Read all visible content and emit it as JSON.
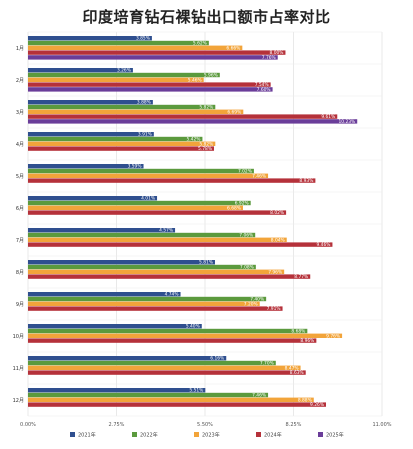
{
  "chart_data": {
    "type": "bar",
    "orientation": "horizontal",
    "title": "印度培育钻石裸钻出口额市占率对比",
    "categories": [
      "1月",
      "2月",
      "3月",
      "4月",
      "5月",
      "6月",
      "7月",
      "8月",
      "9月",
      "10月",
      "11月",
      "12月"
    ],
    "series": [
      {
        "name": "2021年",
        "color": "#2f4f8f",
        "values": [
          3.85,
          3.26,
          3.88,
          3.91,
          3.59,
          4.01,
          4.57,
          5.81,
          4.74,
          5.4,
          6.16,
          5.51
        ],
        "labels": [
          "3.85%",
          "3.26%",
          "3.88%",
          "3.91%",
          "3.59%",
          "4.01%",
          "4.57%",
          "5.81%",
          "4.74%",
          "5.40%",
          "6.16%",
          "5.51%"
        ]
      },
      {
        "name": "2022年",
        "color": "#5b9a3d",
        "values": [
          5.62,
          5.96,
          5.82,
          5.42,
          7.02,
          6.92,
          7.06,
          7.08,
          7.4,
          8.68,
          7.7,
          7.46
        ],
        "labels": [
          "5.62%",
          "5.96%",
          "5.82%",
          "5.42%",
          "7.02%",
          "6.92%",
          "7.06%",
          "7.08%",
          "7.40%",
          "8.68%",
          "7.70%",
          "7.46%"
        ]
      },
      {
        "name": "2023年",
        "color": "#f2a43a",
        "values": [
          6.66,
          5.46,
          6.69,
          5.82,
          7.46,
          6.68,
          8.04,
          7.96,
          7.2,
          9.76,
          8.47,
          8.88
        ],
        "labels": [
          "6.66%",
          "5.46%",
          "6.69%",
          "5.82%",
          "7.46%",
          "6.68%",
          "8.04%",
          "7.96%",
          "7.20%",
          "9.76%",
          "8.47%",
          "8.88%"
        ]
      },
      {
        "name": "2024年",
        "color": "#b5313a",
        "values": [
          8.0,
          7.54,
          9.61,
          5.78,
          8.93,
          8.02,
          9.46,
          8.77,
          7.91,
          8.96,
          8.63,
          9.26
        ],
        "labels": [
          "8.00%",
          "7.54%",
          "9.61%",
          "5.78%",
          "8.93%",
          "8.02%",
          "9.46%",
          "8.77%",
          "7.91%",
          "8.96%",
          "8.63%",
          "9.26%"
        ]
      },
      {
        "name": "2025年",
        "color": "#6a3d99",
        "values": [
          7.76,
          7.6,
          10.23,
          null,
          null,
          null,
          null,
          null,
          null,
          null,
          null,
          null
        ],
        "labels": [
          "7.76%",
          "7.60%",
          "10.23%",
          "",
          "",
          "",
          "",
          "",
          "",
          "",
          "",
          ""
        ]
      }
    ],
    "xlim": [
      0,
      11.0
    ],
    "xticks": [
      0,
      2.75,
      5.5,
      8.25,
      11.0
    ],
    "xtick_labels": [
      "0.00%",
      "2.75%",
      "5.50%",
      "8.25%",
      "11.00%"
    ],
    "grid": true,
    "legend_position": "bottom"
  }
}
